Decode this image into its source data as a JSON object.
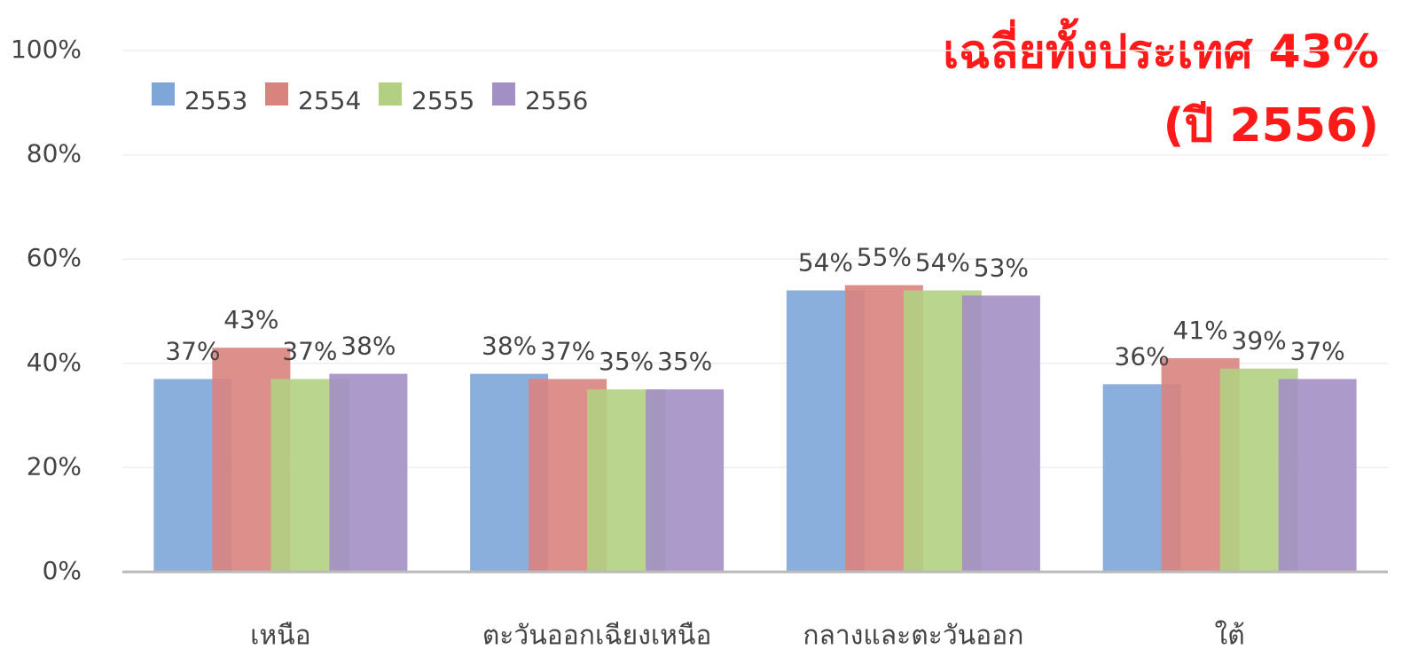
{
  "chart_data": {
    "type": "bar",
    "annotations": [
      "เฉลี่ยทั้งประเทศ 43%",
      "(ปี 2556)"
    ],
    "categories": [
      "เหนือ",
      "ตะวันออกเฉียงเหนือ",
      "กลางและตะวันออก",
      "ใต้"
    ],
    "series": [
      {
        "name": "2553",
        "color": "#7ea6d8",
        "values": [
          37,
          38,
          54,
          36
        ],
        "value_labels": [
          "37%",
          "38%",
          "54%",
          "36%"
        ]
      },
      {
        "name": "2554",
        "color": "#d9837e",
        "values": [
          43,
          37,
          55,
          41
        ],
        "value_labels": [
          "43%",
          "37%",
          "55%",
          "41%"
        ]
      },
      {
        "name": "2555",
        "color": "#b3d082",
        "values": [
          37,
          35,
          54,
          39
        ],
        "value_labels": [
          "37%",
          "35%",
          "54%",
          "39%"
        ]
      },
      {
        "name": "2556",
        "color": "#a28fc4",
        "values": [
          38,
          35,
          53,
          37
        ],
        "value_labels": [
          "38%",
          "35%",
          "53%",
          "37%"
        ]
      }
    ],
    "ylim": [
      0,
      100
    ],
    "yticks": [
      {
        "value": 0,
        "label": "0%"
      },
      {
        "value": 20,
        "label": "20%"
      },
      {
        "value": 40,
        "label": "40%"
      },
      {
        "value": 60,
        "label": "60%"
      },
      {
        "value": 80,
        "label": "80%"
      },
      {
        "value": 100,
        "label": "100%"
      }
    ],
    "grid": true,
    "legend": "upper left"
  }
}
